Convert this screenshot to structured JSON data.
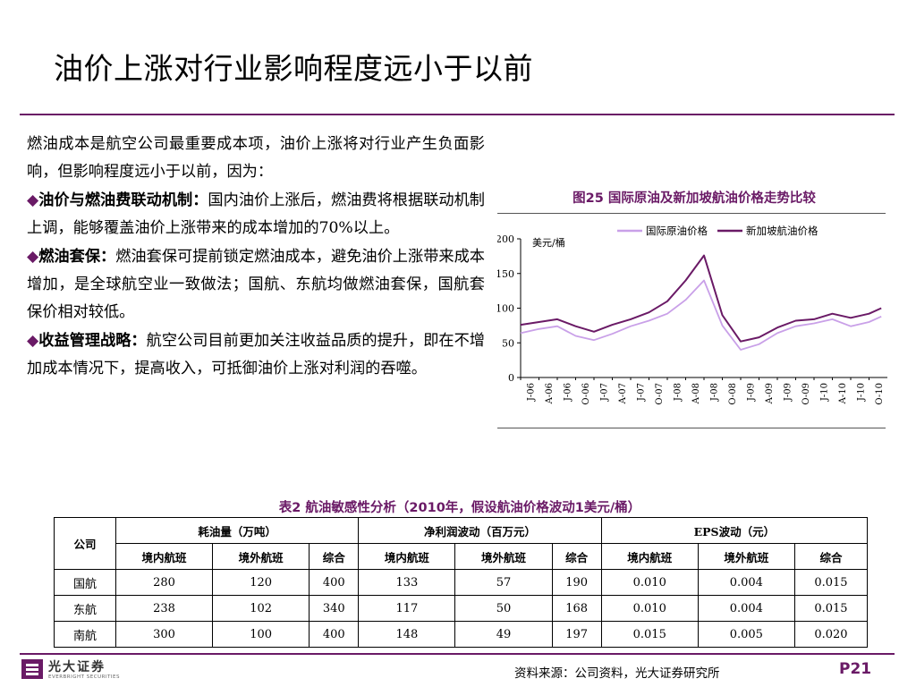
{
  "title": "油价上涨对行业影响程度远小于以前",
  "body": {
    "intro": "燃油成本是航空公司最重要成本项，油价上涨将对行业产生负面影响，但影响程度远小于以前，因为：",
    "bullet_symbol": "◆",
    "points": [
      {
        "heading": "油价与燃油费联动机制：",
        "text": "国内油价上涨后，燃油费将根据联动机制上调，能够覆盖油价上涨带来的成本增加的70%以上。"
      },
      {
        "heading": "燃油套保：",
        "text": "燃油套保可提前锁定燃油成本，避免油价上涨带来成本增加，是全球航空业一致做法；国航、东航均做燃油套保，国航套保价相对较低。"
      },
      {
        "heading": "收益管理战略：",
        "text": "航空公司目前更加关注收益品质的提升，即在不增加成本情况下，提高收入，可抵御油价上涨对利润的吞噬。"
      }
    ]
  },
  "figure": {
    "caption": "图25  国际原油及新加坡航油价格走势比较"
  },
  "chart_data": {
    "type": "line",
    "unit_label": "美元/桶",
    "ylim": [
      0,
      200
    ],
    "yticks": [
      0,
      50,
      100,
      150,
      200
    ],
    "xticks": [
      "J-06",
      "A-06",
      "J-06",
      "O-06",
      "J-07",
      "A-07",
      "J-07",
      "O-07",
      "J-08",
      "A-08",
      "J-08",
      "O-08",
      "J-09",
      "A-09",
      "J-09",
      "O-09",
      "J-10",
      "A-10",
      "J-10",
      "O-10"
    ],
    "legend_position": "top-right",
    "colors": {
      "crude": "#c9a0e8",
      "jet": "#6a1a66"
    },
    "x_months": [
      "2006-01",
      "2006-04",
      "2006-07",
      "2006-10",
      "2007-01",
      "2007-04",
      "2007-07",
      "2007-10",
      "2008-01",
      "2008-04",
      "2008-07",
      "2008-10",
      "2009-01",
      "2009-04",
      "2009-07",
      "2009-10",
      "2010-01",
      "2010-04",
      "2010-07",
      "2010-10",
      "2010-12"
    ],
    "series": [
      {
        "name": "国际原油价格",
        "values": [
          64,
          70,
          74,
          60,
          54,
          63,
          74,
          82,
          92,
          112,
          140,
          75,
          40,
          48,
          64,
          74,
          78,
          84,
          74,
          80,
          88
        ]
      },
      {
        "name": "新加坡航油价格",
        "values": [
          76,
          80,
          84,
          74,
          66,
          76,
          84,
          94,
          110,
          140,
          176,
          90,
          52,
          58,
          72,
          82,
          84,
          92,
          86,
          92,
          100
        ]
      }
    ]
  },
  "table": {
    "caption": "表2  航油敏感性分析（2010年，假设航油价格波动1美元/桶）",
    "company_header": "公司",
    "groups": [
      "耗油量（万吨）",
      "净利润波动（百万元）",
      "EPS波动（元）"
    ],
    "subheaders": [
      "境内航班",
      "境外航班",
      "综合"
    ],
    "rows": [
      {
        "company": "国航",
        "values": [
          "280",
          "120",
          "400",
          "133",
          "57",
          "190",
          "0.010",
          "0.004",
          "0.015"
        ]
      },
      {
        "company": "东航",
        "values": [
          "238",
          "102",
          "340",
          "117",
          "50",
          "168",
          "0.010",
          "0.004",
          "0.015"
        ]
      },
      {
        "company": "南航",
        "values": [
          "300",
          "100",
          "400",
          "148",
          "49",
          "197",
          "0.015",
          "0.005",
          "0.020"
        ]
      }
    ]
  },
  "footer": {
    "logo_name": "光大证券",
    "logo_sub": "EVERBRIGHT SECURITIES",
    "source": "资料来源：公司资料，光大证券研究所",
    "page": "P21"
  }
}
